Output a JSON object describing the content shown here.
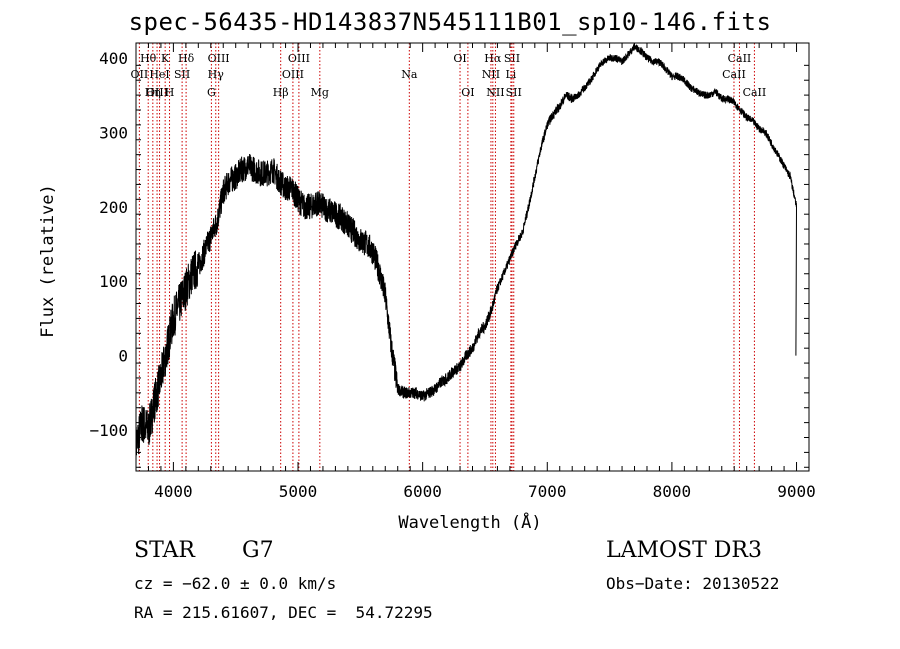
{
  "chart_data": {
    "type": "line",
    "title": "spec-56435-HD143837N545111B01_sp10-146.fits",
    "xlabel": "Wavelength (Å)",
    "ylabel": "Flux (relative)",
    "xlim": [
      3700,
      9100
    ],
    "ylim": [
      -155,
      420
    ],
    "xticks": [
      4000,
      5000,
      6000,
      7000,
      8000,
      9000
    ],
    "yticks": [
      -100,
      0,
      100,
      200,
      300,
      400
    ],
    "xtick_labels": [
      "4000",
      "5000",
      "6000",
      "7000",
      "8000",
      "9000"
    ],
    "ytick_labels": [
      "−100",
      "0",
      "100",
      "200",
      "300",
      "400"
    ],
    "series": [
      {
        "name": "spectrum",
        "x": [
          3700,
          3750,
          3800,
          3850,
          3900,
          3950,
          4000,
          4050,
          4100,
          4150,
          4200,
          4250,
          4300,
          4350,
          4400,
          4450,
          4500,
          4550,
          4600,
          4650,
          4700,
          4750,
          4800,
          4850,
          4900,
          4950,
          5000,
          5050,
          5100,
          5150,
          5200,
          5250,
          5300,
          5350,
          5400,
          5450,
          5500,
          5550,
          5600,
          5650,
          5700,
          5750,
          5800,
          5850,
          5900,
          5950,
          6000,
          6050,
          6100,
          6150,
          6200,
          6250,
          6300,
          6350,
          6400,
          6450,
          6500,
          6550,
          6600,
          6650,
          6700,
          6750,
          6800,
          6850,
          6900,
          6950,
          7000,
          7050,
          7100,
          7150,
          7200,
          7250,
          7300,
          7350,
          7400,
          7450,
          7500,
          7550,
          7600,
          7650,
          7700,
          7750,
          7800,
          7850,
          7900,
          7950,
          8000,
          8050,
          8100,
          8150,
          8200,
          8250,
          8300,
          8350,
          8400,
          8450,
          8500,
          8550,
          8600,
          8650,
          8700,
          8750,
          8800,
          8850,
          8900,
          8950,
          9000
        ],
        "values": [
          -120,
          -90,
          -100,
          -60,
          -30,
          10,
          50,
          70,
          90,
          110,
          120,
          140,
          160,
          180,
          220,
          235,
          240,
          250,
          255,
          250,
          245,
          245,
          250,
          235,
          225,
          225,
          210,
          200,
          200,
          205,
          200,
          195,
          190,
          185,
          175,
          165,
          155,
          150,
          140,
          115,
          80,
          10,
          -45,
          -50,
          -50,
          -50,
          -55,
          -50,
          -45,
          -35,
          -30,
          -20,
          -15,
          0,
          10,
          30,
          40,
          60,
          90,
          110,
          130,
          150,
          165,
          200,
          240,
          280,
          310,
          325,
          335,
          350,
          345,
          350,
          360,
          370,
          385,
          395,
          400,
          400,
          395,
          405,
          415,
          410,
          400,
          395,
          395,
          385,
          375,
          375,
          370,
          360,
          355,
          350,
          350,
          355,
          345,
          345,
          340,
          330,
          320,
          315,
          305,
          300,
          285,
          270,
          255,
          240,
          200
        ]
      }
    ],
    "line_markers": [
      {
        "label": "Hθ",
        "wavelength": 3798,
        "row": 1
      },
      {
        "label": "OII",
        "wavelength": 3727,
        "row": 2
      },
      {
        "label": "OIII",
        "wavelength": 3869,
        "row": 3
      },
      {
        "label": "K",
        "wavelength": 3934,
        "row": 1
      },
      {
        "label": "HeI",
        "wavelength": 3889,
        "row": 2
      },
      {
        "label": "Hη",
        "wavelength": 3835,
        "row": 3
      },
      {
        "label": "Hδ",
        "wavelength": 4102,
        "row": 1
      },
      {
        "label": "SII",
        "wavelength": 4070,
        "row": 2
      },
      {
        "label": "H",
        "wavelength": 3969,
        "row": 3
      },
      {
        "label": "OIII",
        "wavelength": 4363,
        "row": 1
      },
      {
        "label": "Hγ",
        "wavelength": 4340,
        "row": 2
      },
      {
        "label": "G",
        "wavelength": 4305,
        "row": 3
      },
      {
        "label": "OIII",
        "wavelength": 5007,
        "row": 1
      },
      {
        "label": "OIII",
        "wavelength": 4959,
        "row": 2
      },
      {
        "label": "Hβ",
        "wavelength": 4861,
        "row": 3
      },
      {
        "label": "Mg",
        "wavelength": 5175,
        "row": 3
      },
      {
        "label": "Na",
        "wavelength": 5893,
        "row": 2
      },
      {
        "label": "OI",
        "wavelength": 6300,
        "row": 1
      },
      {
        "label": "OI",
        "wavelength": 6363,
        "row": 3
      },
      {
        "label": "Hα",
        "wavelength": 6563,
        "row": 1
      },
      {
        "label": "NII",
        "wavelength": 6548,
        "row": 2
      },
      {
        "label": "NII",
        "wavelength": 6584,
        "row": 3
      },
      {
        "label": "SII",
        "wavelength": 6717,
        "row": 1
      },
      {
        "label": "Li",
        "wavelength": 6708,
        "row": 2
      },
      {
        "label": "SII",
        "wavelength": 6731,
        "row": 3
      },
      {
        "label": "CaII",
        "wavelength": 8542,
        "row": 1
      },
      {
        "label": "CaII",
        "wavelength": 8498,
        "row": 2
      },
      {
        "label": "CaII",
        "wavelength": 8662,
        "row": 3
      }
    ]
  },
  "info": {
    "object_class": "STAR",
    "subclass": "G7",
    "survey": "LAMOST DR3",
    "cz": "cz = −62.0 ± 0.0 km/s",
    "obs_date": "Obs−Date: 20130522",
    "coords": "RA = 215.61607, DEC =  54.72295"
  },
  "colors": {
    "spectrum": "#000000",
    "marker_line": "#cc0000",
    "axis": "#000000"
  }
}
